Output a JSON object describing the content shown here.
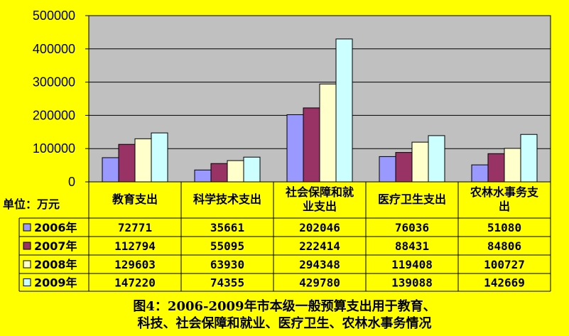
{
  "chart_data": {
    "type": "bar",
    "categories": [
      "教育支出",
      "科学技术支出",
      "社会保障和就业支出",
      "医疗卫生支出",
      "农林水事务支出"
    ],
    "category_labels": [
      [
        "教育支出"
      ],
      [
        "科学技术支出"
      ],
      [
        "社会保障和就",
        "业支出"
      ],
      [
        "医疗卫生支出"
      ],
      [
        "农林水事务支",
        "出"
      ]
    ],
    "series": [
      {
        "name": "2006年",
        "values": [
          72771,
          35661,
          202046,
          76036,
          51080
        ],
        "color": "#9999ff"
      },
      {
        "name": "2007年",
        "values": [
          112794,
          55095,
          222414,
          88431,
          84806
        ],
        "color": "#993366"
      },
      {
        "name": "2008年",
        "values": [
          129603,
          63930,
          294348,
          119408,
          100727
        ],
        "color": "#ffffcc"
      },
      {
        "name": "2009年",
        "values": [
          147220,
          74355,
          429780,
          139088,
          142669
        ],
        "color": "#ccffff"
      }
    ],
    "yticks": [
      "0",
      "100000",
      "200000",
      "300000",
      "400000",
      "500000"
    ],
    "ylim": [
      0,
      500000
    ],
    "unit_label": "单位：万元",
    "grid": true,
    "legend": "data-table",
    "plot_background": "#c0c0c0",
    "page_background": "#ffff00"
  },
  "caption": {
    "line1": "图4：2006-2009年市本级一般预算支出用于教育、",
    "line2": "科技、社会保障和就业、医疗卫生、农林水事务情况"
  }
}
